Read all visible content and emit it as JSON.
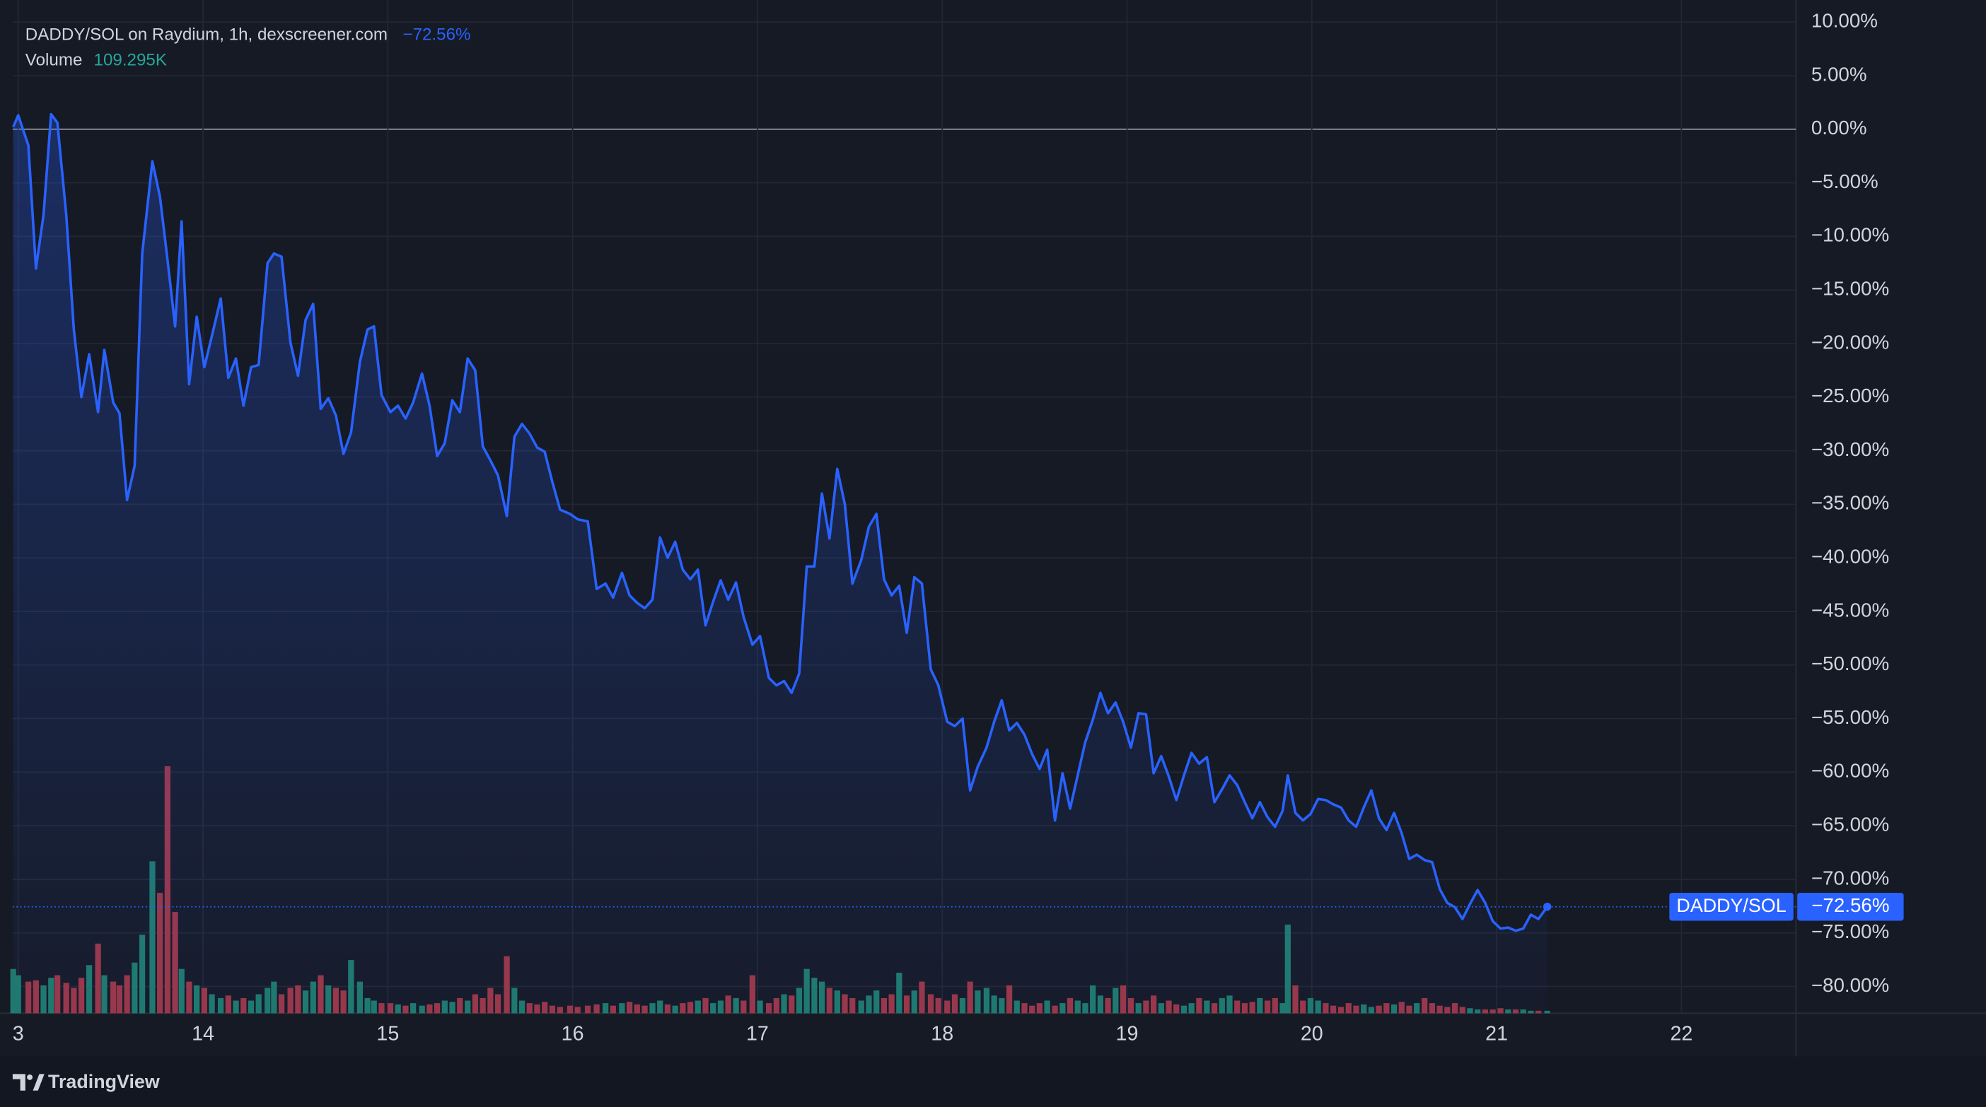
{
  "chart_data": {
    "type": "line",
    "title": "DADDY/SOL on Raydium, 1h, dexscreener.com",
    "change_label": "−72.56%",
    "last_value_label": "−72.56%",
    "footer": "TradingView",
    "x": [
      12.973,
      13.0,
      13.055,
      13.096,
      13.137,
      13.178,
      13.212,
      13.26,
      13.301,
      13.342,
      13.384,
      13.432,
      13.466,
      13.514,
      13.548,
      13.589,
      13.63,
      13.671,
      13.726,
      13.767,
      13.808,
      13.849,
      13.884,
      13.925,
      13.966,
      14.007,
      14.048,
      14.096,
      14.137,
      14.178,
      14.219,
      14.26,
      14.301,
      14.349,
      14.384,
      14.425,
      14.473,
      14.514,
      14.555,
      14.596,
      14.637,
      14.678,
      14.719,
      14.76,
      14.801,
      14.849,
      14.89,
      14.925,
      14.966,
      15.014,
      15.055,
      15.096,
      15.137,
      15.185,
      15.226,
      15.267,
      15.308,
      15.349,
      15.39,
      15.432,
      15.473,
      15.514,
      15.555,
      15.596,
      15.644,
      15.685,
      15.726,
      15.767,
      15.808,
      15.849,
      15.89,
      15.932,
      15.986,
      16.027,
      16.082,
      16.13,
      16.178,
      16.219,
      16.267,
      16.308,
      16.349,
      16.39,
      16.432,
      16.473,
      16.514,
      16.555,
      16.596,
      16.637,
      16.678,
      16.719,
      16.76,
      16.801,
      16.842,
      16.884,
      16.925,
      16.973,
      17.014,
      17.062,
      17.103,
      17.144,
      17.185,
      17.226,
      17.267,
      17.308,
      17.349,
      17.39,
      17.432,
      17.473,
      17.514,
      17.562,
      17.603,
      17.644,
      17.685,
      17.726,
      17.767,
      17.808,
      17.849,
      17.89,
      17.938,
      17.979,
      18.027,
      18.068,
      18.11,
      18.151,
      18.192,
      18.24,
      18.281,
      18.322,
      18.363,
      18.404,
      18.445,
      18.486,
      18.527,
      18.568,
      18.61,
      18.651,
      18.692,
      18.733,
      18.774,
      18.815,
      18.856,
      18.897,
      18.938,
      18.979,
      19.021,
      19.062,
      19.103,
      19.144,
      19.185,
      19.226,
      19.267,
      19.308,
      19.349,
      19.39,
      19.432,
      19.473,
      19.514,
      19.555,
      19.596,
      19.637,
      19.678,
      19.719,
      19.76,
      19.801,
      19.842,
      19.87,
      19.911,
      19.952,
      19.993,
      20.034,
      20.075,
      20.116,
      20.158,
      20.199,
      20.24,
      20.281,
      20.322,
      20.363,
      20.404,
      20.445,
      20.486,
      20.527,
      20.568,
      20.61,
      20.651,
      20.692,
      20.733,
      20.774,
      20.815,
      20.856,
      20.897,
      20.938,
      20.979,
      21.021,
      21.062,
      21.103,
      21.144,
      21.185,
      21.226,
      21.274
    ],
    "series": [
      {
        "name": "DADDY/SOL",
        "color": "#2962ff",
        "values": [
          0.2,
          1.3,
          -1.5,
          -13,
          -8,
          1.4,
          0.6,
          -8,
          -18.7,
          -25,
          -21,
          -26.4,
          -20.6,
          -25.5,
          -26.5,
          -34.6,
          -31.4,
          -11.6,
          -3,
          -6.3,
          -12.2,
          -18.4,
          -8.6,
          -23.8,
          -17.5,
          -22.2,
          -19.3,
          -15.8,
          -23.2,
          -21.4,
          -25.8,
          -22.2,
          -22,
          -12.5,
          -11.6,
          -11.9,
          -19.9,
          -23,
          -17.8,
          -16.3,
          -26.1,
          -25.1,
          -26.7,
          -30.3,
          -28.3,
          -21.7,
          -18.7,
          -18.4,
          -24.8,
          -26.4,
          -25.8,
          -27,
          -25.5,
          -22.8,
          -25.8,
          -30.5,
          -29.3,
          -25.3,
          -26.4,
          -21.4,
          -22.5,
          -29.6,
          -30.9,
          -32.3,
          -36.1,
          -28.7,
          -27.5,
          -28.4,
          -29.7,
          -30.1,
          -32.9,
          -35.5,
          -35.9,
          -36.4,
          -36.6,
          -42.9,
          -42.4,
          -43.7,
          -41.4,
          -43.5,
          -44.2,
          -44.7,
          -43.9,
          -38.1,
          -40,
          -38.5,
          -41.1,
          -42,
          -41.1,
          -46.3,
          -44.1,
          -42.1,
          -43.9,
          -42.3,
          -45.5,
          -48.1,
          -47.3,
          -51.2,
          -51.9,
          -51.5,
          -52.6,
          -50.8,
          -40.8,
          -40.8,
          -34,
          -38.2,
          -31.7,
          -35,
          -42.4,
          -40.2,
          -37.1,
          -35.9,
          -42,
          -43.5,
          -42.6,
          -47,
          -41.8,
          -42.4,
          -50.4,
          -51.9,
          -55.3,
          -55.7,
          -55,
          -61.7,
          -59.5,
          -57.7,
          -55.3,
          -53.3,
          -56.1,
          -55.4,
          -56.5,
          -58.3,
          -59.7,
          -57.9,
          -64.5,
          -60.1,
          -63.4,
          -60.3,
          -57.2,
          -55.1,
          -52.6,
          -54.5,
          -53.5,
          -55.3,
          -57.7,
          -54.5,
          -54.6,
          -60.1,
          -58.5,
          -60.4,
          -62.6,
          -60.3,
          -58.2,
          -59.2,
          -58.6,
          -62.8,
          -61.6,
          -60.3,
          -61.2,
          -62.8,
          -64.3,
          -62.8,
          -64.2,
          -65.1,
          -63.6,
          -60.3,
          -63.8,
          -64.5,
          -63.9,
          -62.5,
          -62.6,
          -63,
          -63.3,
          -64.5,
          -65.1,
          -63.3,
          -61.7,
          -64.3,
          -65.4,
          -63.8,
          -65.7,
          -68.1,
          -67.7,
          -68.2,
          -68.4,
          -70.9,
          -72.2,
          -72.6,
          -73.7,
          -72.3,
          -71,
          -72.2,
          -73.9,
          -74.6,
          -74.5,
          -74.8,
          -74.6,
          -73.3,
          -73.7,
          -72.56
        ]
      },
      {
        "name": "Volume",
        "axis": "y2",
        "up_color": "#1f7a6c",
        "down_color": "#9c3646",
        "label_color": "#26a69a",
        "last_value_label": "109.295K",
        "values": [
          1925000,
          1650000,
          1375000,
          1430000,
          1210000,
          1540000,
          1650000,
          1320000,
          1100000,
          1540000,
          2090000,
          3025000,
          1650000,
          1375000,
          1210000,
          1650000,
          2200000,
          3410000,
          6600000,
          5225000,
          10725000,
          4400000,
          1925000,
          1375000,
          1210000,
          1100000,
          825000,
          660000,
          770000,
          550000,
          660000,
          550000,
          825000,
          1100000,
          1375000,
          825000,
          1100000,
          1210000,
          990000,
          1375000,
          1650000,
          1210000,
          1100000,
          990000,
          2310000,
          1375000,
          660000,
          550000,
          440000,
          440000,
          385000,
          330000,
          440000,
          330000,
          385000,
          440000,
          550000,
          495000,
          660000,
          550000,
          825000,
          660000,
          1100000,
          825000,
          2475000,
          1100000,
          550000,
          440000,
          385000,
          495000,
          330000,
          275000,
          330000,
          275000,
          330000,
          385000,
          440000,
          330000,
          440000,
          495000,
          385000,
          330000,
          440000,
          550000,
          385000,
          330000,
          440000,
          495000,
          550000,
          660000,
          440000,
          550000,
          770000,
          660000,
          550000,
          1650000,
          550000,
          440000,
          660000,
          825000,
          770000,
          1100000,
          1925000,
          1540000,
          1375000,
          1100000,
          990000,
          825000,
          660000,
          550000,
          770000,
          990000,
          660000,
          825000,
          1760000,
          770000,
          990000,
          1375000,
          825000,
          660000,
          550000,
          825000,
          660000,
          1375000,
          990000,
          1100000,
          770000,
          660000,
          1210000,
          550000,
          440000,
          330000,
          440000,
          550000,
          330000,
          440000,
          660000,
          550000,
          440000,
          1210000,
          770000,
          660000,
          1100000,
          1210000,
          660000,
          440000,
          550000,
          770000,
          440000,
          550000,
          385000,
          330000,
          440000,
          660000,
          550000,
          440000,
          660000,
          770000,
          550000,
          440000,
          495000,
          660000,
          550000,
          660000,
          440000,
          3850000,
          1210000,
          550000,
          660000,
          550000,
          440000,
          330000,
          275000,
          440000,
          330000,
          385000,
          275000,
          330000,
          440000,
          385000,
          495000,
          330000,
          440000,
          660000,
          440000,
          330000,
          275000,
          440000,
          275000,
          220000,
          165000,
          165000,
          165000,
          220000,
          165000,
          165000,
          165000,
          110000,
          110000,
          109295
        ]
      }
    ],
    "xlim": [
      12.97,
      22.62
    ],
    "xticks": [
      {
        "value": 13,
        "label": "3"
      },
      14,
      15,
      16,
      17,
      18,
      19,
      20,
      21,
      22
    ],
    "ylim": [
      -82.5,
      10.9
    ],
    "yticks": [
      {
        "value": 10,
        "label": "10.00%"
      },
      {
        "value": 5,
        "label": "5.00%"
      },
      {
        "value": 0,
        "label": "0.00%"
      },
      {
        "value": -5,
        "label": "−5.00%"
      },
      {
        "value": -10,
        "label": "−10.00%"
      },
      {
        "value": -15,
        "label": "−15.00%"
      },
      {
        "value": -20,
        "label": "−20.00%"
      },
      {
        "value": -25,
        "label": "−25.00%"
      },
      {
        "value": -30,
        "label": "−30.00%"
      },
      {
        "value": -35,
        "label": "−35.00%"
      },
      {
        "value": -40,
        "label": "−40.00%"
      },
      {
        "value": -45,
        "label": "−45.00%"
      },
      {
        "value": -50,
        "label": "−50.00%"
      },
      {
        "value": -55,
        "label": "−55.00%"
      },
      {
        "value": -60,
        "label": "−60.00%"
      },
      {
        "value": -65,
        "label": "−65.00%"
      },
      {
        "value": -70,
        "label": "−70.00%"
      },
      {
        "value": -75,
        "label": "−75.00%"
      },
      {
        "value": -80,
        "label": "−80.00%"
      }
    ],
    "y2lim": [
      0,
      43450000
    ],
    "grid": true
  }
}
